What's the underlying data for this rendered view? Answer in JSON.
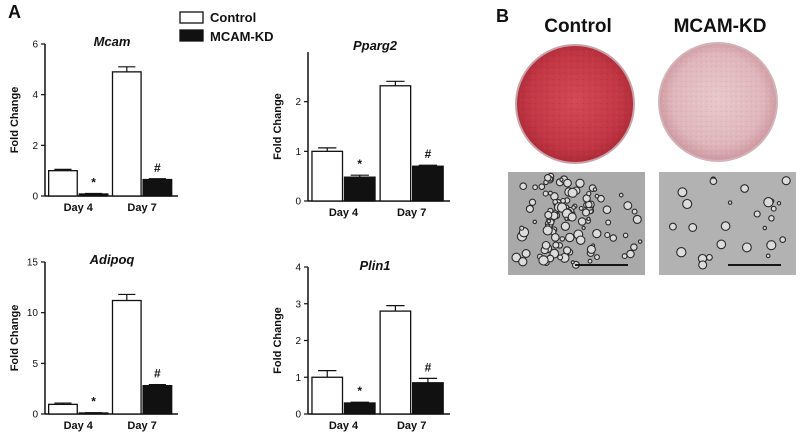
{
  "panels": {
    "a": "A",
    "b": "B"
  },
  "legend": [
    "Control",
    "MCAM-KD"
  ],
  "colors": {
    "control_fill": "#ffffff",
    "kd_fill": "#111111",
    "axis": "#111111"
  },
  "chart_data": [
    {
      "type": "bar",
      "title": "Mcam",
      "ylabel": "Fold Change",
      "categories": [
        "Day 4",
        "Day 7"
      ],
      "ylim": [
        0,
        6
      ],
      "yticks": [
        0,
        2,
        4,
        6
      ],
      "series": [
        {
          "name": "Control",
          "values": [
            1.0,
            4.9
          ],
          "errors": [
            0.05,
            0.2
          ]
        },
        {
          "name": "MCAM-KD",
          "values": [
            0.08,
            0.65
          ],
          "errors": [
            0.02,
            0.03
          ]
        }
      ],
      "annotations": [
        "*",
        "#"
      ]
    },
    {
      "type": "bar",
      "title": "Pparg2",
      "ylabel": "Fold Change",
      "categories": [
        "Day 4",
        "Day 7"
      ],
      "ylim": [
        0,
        3
      ],
      "yticks": [
        0,
        1,
        2
      ],
      "series": [
        {
          "name": "Control",
          "values": [
            1.0,
            2.32
          ],
          "errors": [
            0.07,
            0.09
          ]
        },
        {
          "name": "MCAM-KD",
          "values": [
            0.48,
            0.7
          ],
          "errors": [
            0.04,
            0.02
          ]
        }
      ],
      "annotations": [
        "*",
        "#"
      ]
    },
    {
      "type": "bar",
      "title": "Adipoq",
      "ylabel": "Fold Change",
      "categories": [
        "Day 4",
        "Day 7"
      ],
      "ylim": [
        0,
        15
      ],
      "yticks": [
        0,
        5,
        10,
        15
      ],
      "series": [
        {
          "name": "Control",
          "values": [
            0.95,
            11.2
          ],
          "errors": [
            0.12,
            0.6
          ]
        },
        {
          "name": "MCAM-KD",
          "values": [
            0.1,
            2.8
          ],
          "errors": [
            0.03,
            0.1
          ]
        }
      ],
      "annotations": [
        "*",
        "#"
      ]
    },
    {
      "type": "bar",
      "title": "Plin1",
      "ylabel": "Fold Change",
      "categories": [
        "Day 4",
        "Day 7"
      ],
      "ylim": [
        0,
        4
      ],
      "yticks": [
        0,
        1,
        2,
        3,
        4
      ],
      "series": [
        {
          "name": "Control",
          "values": [
            1.0,
            2.8
          ],
          "errors": [
            0.18,
            0.15
          ]
        },
        {
          "name": "MCAM-KD",
          "values": [
            0.3,
            0.85
          ],
          "errors": [
            0.02,
            0.12
          ]
        }
      ],
      "annotations": [
        "*",
        "#"
      ]
    }
  ],
  "staining": {
    "columns": [
      "Control",
      "MCAM-KD"
    ]
  }
}
